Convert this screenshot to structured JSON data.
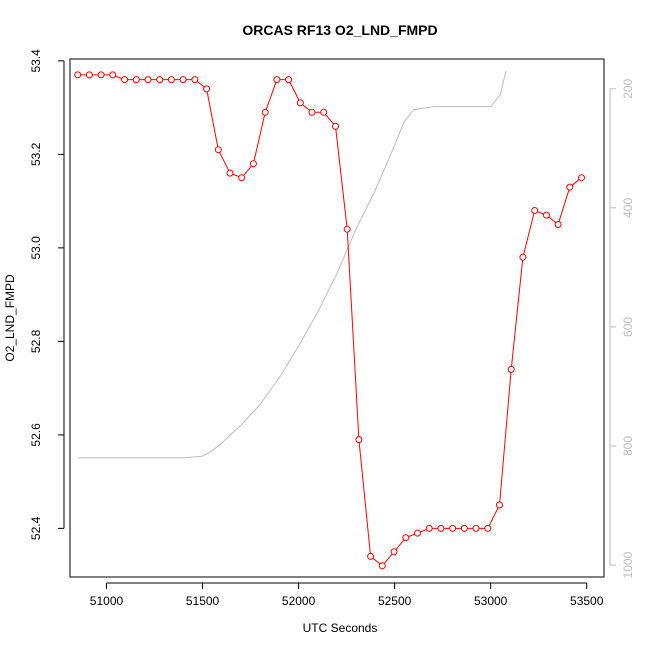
{
  "chart_data": {
    "type": "line",
    "title": "ORCAS RF13 O2_LND_FMPD",
    "xlabel": "UTC Seconds",
    "ylabel": "O2_LND_FMPD",
    "xlim": [
      50810,
      53590
    ],
    "ylim": [
      52.296,
      53.404
    ],
    "y2lim": [
      1020,
      150
    ],
    "x_ticks": [
      51000,
      51500,
      52000,
      52500,
      53000,
      53500
    ],
    "y_ticks": [
      52.4,
      52.6,
      52.8,
      53.0,
      53.2,
      53.4
    ],
    "y_tick_labels": [
      "52.4",
      "52.6",
      "52.8",
      "53.0",
      "53.2",
      "53.4"
    ],
    "y2_ticks": [
      200,
      400,
      600,
      800,
      1000
    ],
    "y2_tick_labels": [
      "200",
      "400",
      "600",
      "800",
      "1000"
    ],
    "series": [
      {
        "color": "#ff0000",
        "marker": "open-circle",
        "x": [
          50850,
          50911,
          50972,
          51033,
          51094,
          51155,
          51216,
          51277,
          51338,
          51399,
          51460,
          51521,
          51582,
          51643,
          51704,
          51765,
          51826,
          51887,
          51948,
          52009,
          52070,
          52131,
          52192,
          52253,
          52314,
          52375,
          52436,
          52497,
          52558,
          52619,
          52680,
          52741,
          52802,
          52863,
          52924,
          52985,
          53046,
          53107,
          53168,
          53229,
          53290,
          53351,
          53412,
          53473
        ],
        "y": [
          53.37,
          53.37,
          53.37,
          53.37,
          53.36,
          53.36,
          53.36,
          53.36,
          53.36,
          53.36,
          53.36,
          53.34,
          53.21,
          53.16,
          53.15,
          53.18,
          53.29,
          53.36,
          53.36,
          53.31,
          53.29,
          53.29,
          53.26,
          53.04,
          52.59,
          52.34,
          52.32,
          52.35,
          52.38,
          52.39,
          52.4,
          52.4,
          52.4,
          52.4,
          52.4,
          52.4,
          52.45,
          52.74,
          52.98,
          53.08,
          53.07,
          53.05,
          53.13,
          53.15
        ]
      },
      {
        "color": "#bdbdbd",
        "marker": "none",
        "axis": "right",
        "x": [
          50850,
          51000,
          51200,
          51400,
          51500,
          51550,
          51600,
          51700,
          51800,
          51900,
          52000,
          52100,
          52200,
          52300,
          52400,
          52500,
          52550,
          52600,
          52700,
          52800,
          52900,
          52950,
          53000,
          53050,
          53080
        ],
        "y": [
          820,
          820,
          820,
          820,
          817,
          808,
          795,
          765,
          730,
          685,
          632,
          575,
          510,
          435,
          370,
          295,
          255,
          235,
          230,
          230,
          230,
          230,
          230,
          210,
          170
        ]
      }
    ]
  }
}
